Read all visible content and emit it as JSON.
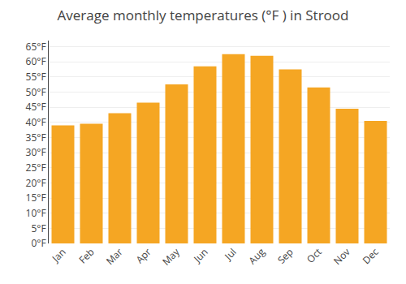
{
  "chart_data": {
    "type": "bar",
    "title": "Average monthly temperatures (°F ) in Strood",
    "categories": [
      "Jan",
      "Feb",
      "Mar",
      "Apr",
      "May",
      "Jun",
      "Jul",
      "Aug",
      "Sep",
      "Oct",
      "Nov",
      "Dec"
    ],
    "values": [
      39,
      39.5,
      43,
      46.5,
      52.5,
      58.5,
      62.5,
      62,
      57.5,
      51.5,
      44.5,
      40.5
    ],
    "color": "#F5A623",
    "ylim": [
      0,
      67
    ],
    "yticks": [
      {
        "value": 0,
        "label": "0°F"
      },
      {
        "value": 5,
        "label": "5°F"
      },
      {
        "value": 10,
        "label": "10°F"
      },
      {
        "value": 15,
        "label": "15°F"
      },
      {
        "value": 20,
        "label": "20°F"
      },
      {
        "value": 25,
        "label": "25°F"
      },
      {
        "value": 30,
        "label": "30°F"
      },
      {
        "value": 35,
        "label": "35°F"
      },
      {
        "value": 40,
        "label": "40°F"
      },
      {
        "value": 45,
        "label": "45°F"
      },
      {
        "value": 50,
        "label": "50°F"
      },
      {
        "value": 55,
        "label": "55°F"
      },
      {
        "value": 60,
        "label": "60°F"
      },
      {
        "value": 65,
        "label": "65°F"
      }
    ],
    "grid": true
  }
}
